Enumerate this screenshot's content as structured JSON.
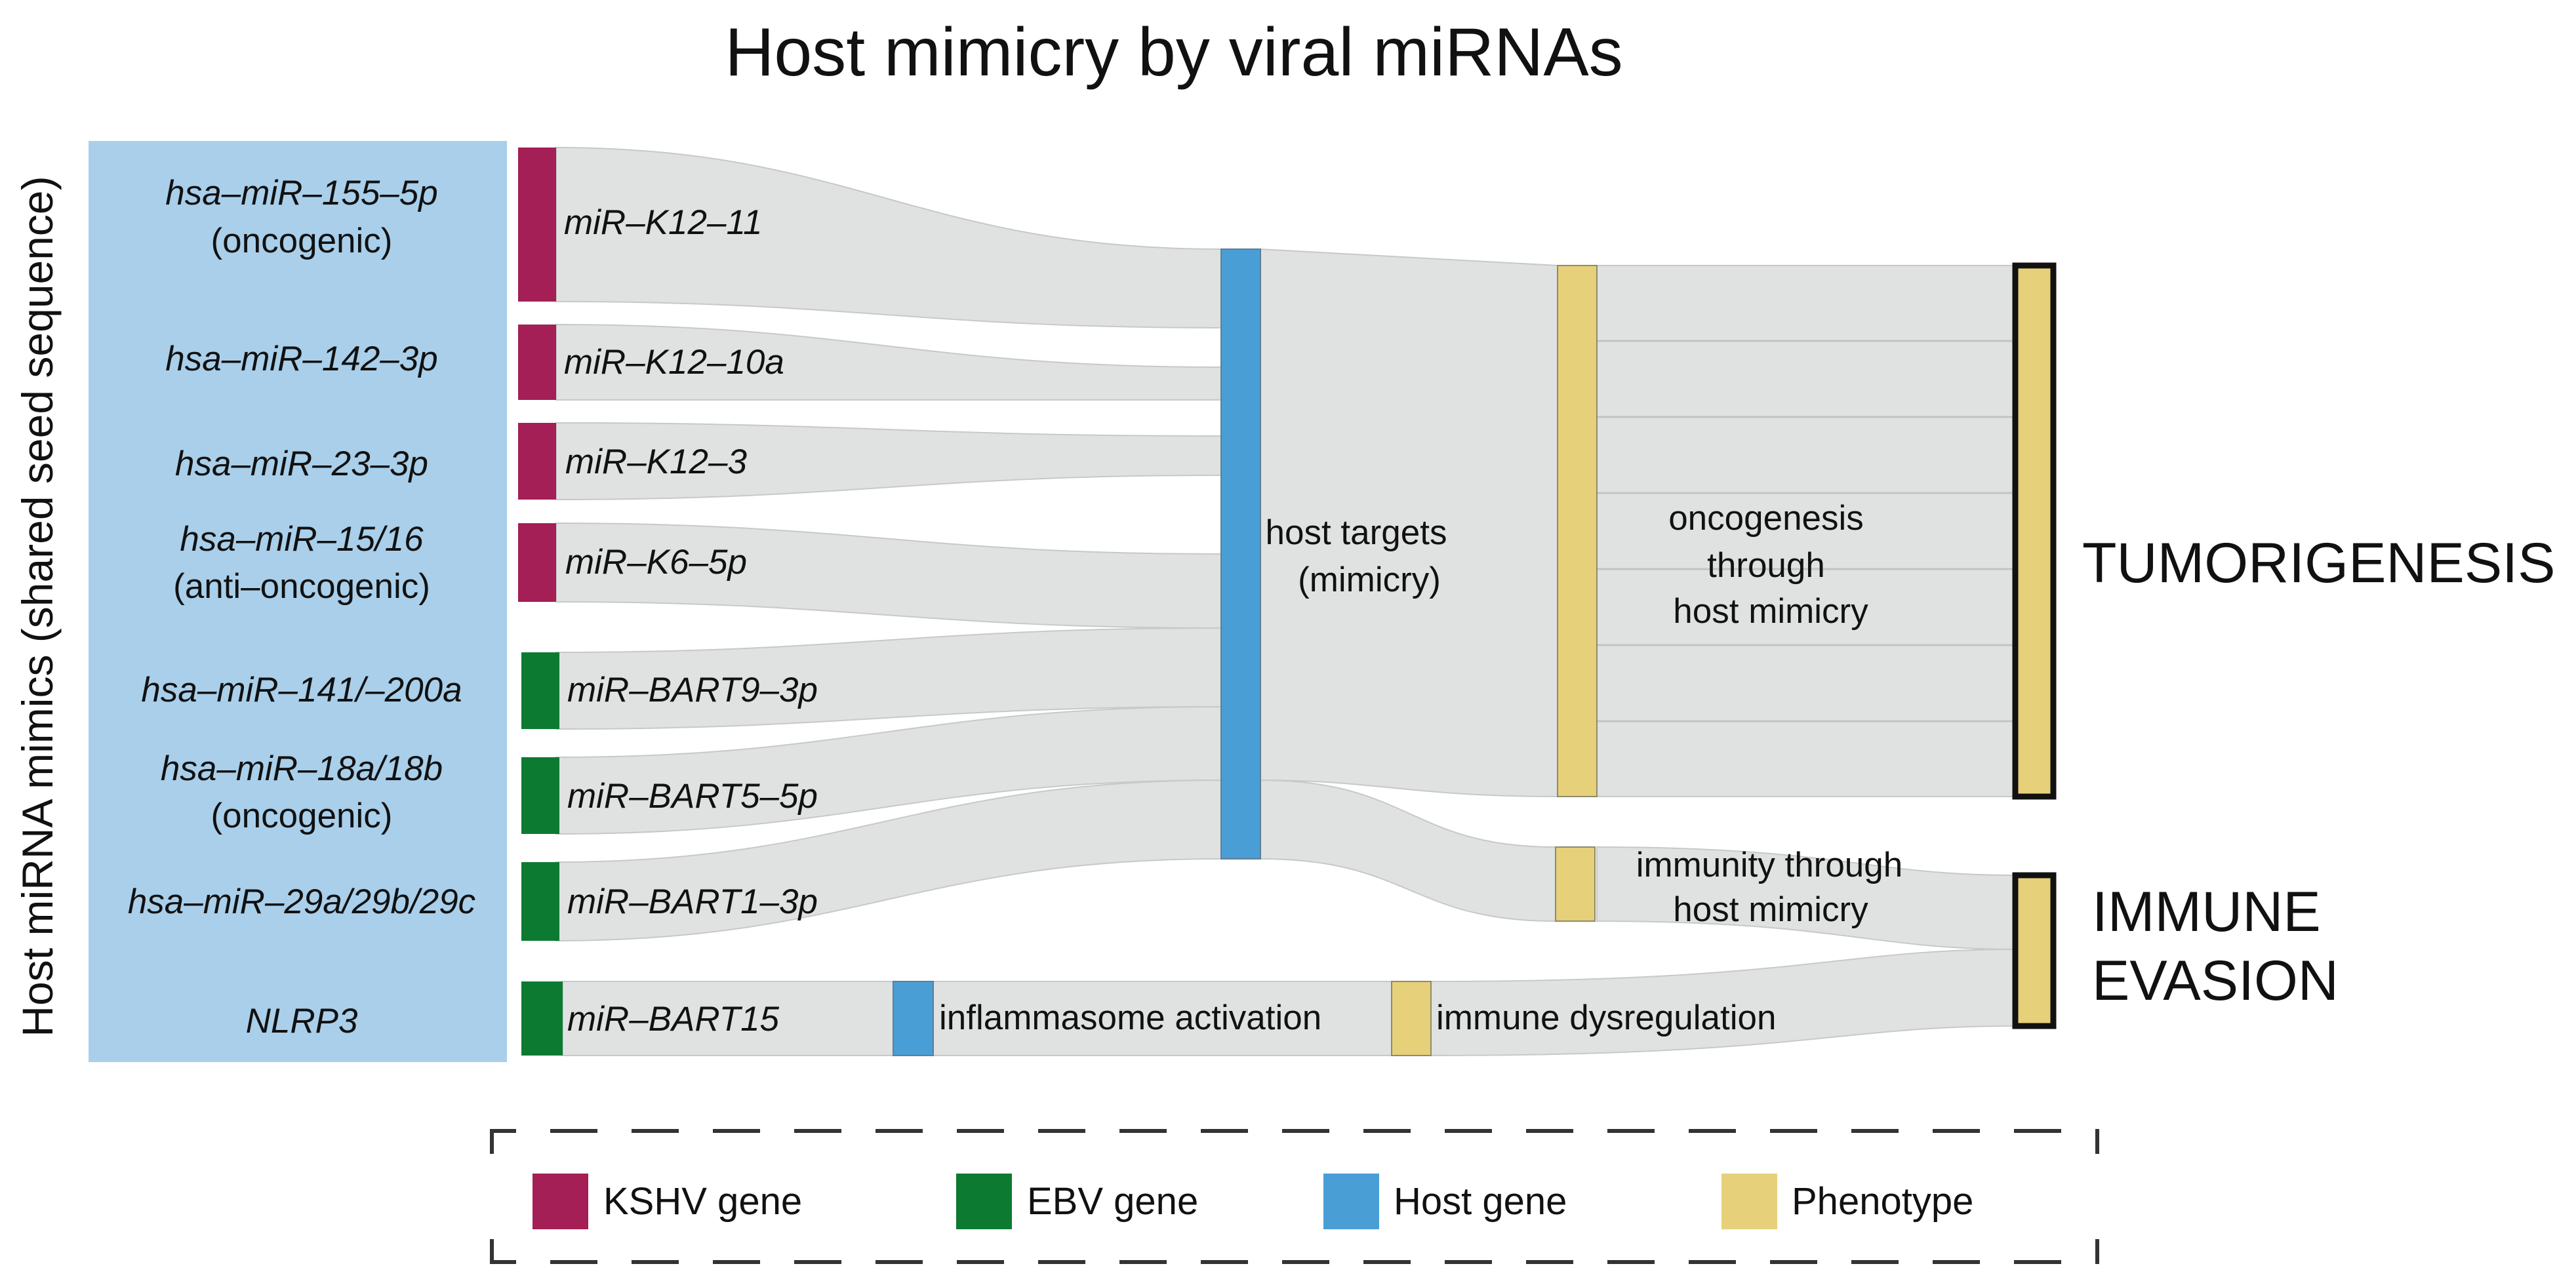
{
  "title": "Host mimicry by viral miRNAs",
  "y_axis_label": "Host miRNA mimics (shared seed sequence)",
  "colors": {
    "kshv": "#a31f55",
    "ebv": "#0d7a31",
    "host": "#4a9ed6",
    "phenotype": "#e6d07a",
    "flow": "#dadcdc",
    "host_panel": "#a9cfea",
    "outline": "#111111"
  },
  "host_mimics": [
    {
      "line1": "hsa–miR–155–5p",
      "line2": "(oncogenic)"
    },
    {
      "line1": "hsa–miR–142–3p",
      "line2": ""
    },
    {
      "line1": "hsa–miR–23–3p",
      "line2": ""
    },
    {
      "line1": "hsa–miR–15/16",
      "line2": "(anti–oncogenic)"
    },
    {
      "line1": "hsa–miR–141/–200a",
      "line2": ""
    },
    {
      "line1": "hsa–miR–18a/18b",
      "line2": "(oncogenic)"
    },
    {
      "line1": "hsa–miR–29a/29b/29c",
      "line2": ""
    },
    {
      "line1": "NLRP3",
      "line2": ""
    }
  ],
  "viral_genes": [
    {
      "label": "miR–K12–11",
      "type": "kshv"
    },
    {
      "label": "miR–K12–10a",
      "type": "kshv"
    },
    {
      "label": "miR–K12–3",
      "type": "kshv"
    },
    {
      "label": "miR–K6–5p",
      "type": "kshv"
    },
    {
      "label": "miR–BART9–3p",
      "type": "ebv"
    },
    {
      "label": "miR–BART5–5p",
      "type": "ebv"
    },
    {
      "label": "miR–BART1–3p",
      "type": "ebv"
    },
    {
      "label": "miR–BART15",
      "type": "ebv"
    }
  ],
  "nodes": {
    "host_targets": {
      "line1": "host targets",
      "line2": "(mimicry)"
    },
    "inflammasome": {
      "label": "inflammasome activation"
    },
    "oncogenesis": {
      "line1": "oncogenesis",
      "line2": "through",
      "line3": "host mimicry"
    },
    "immunity": {
      "line1": "immunity through",
      "line2": "host mimicry"
    },
    "immune_dysregulation": {
      "label": "immune dysregulation"
    },
    "tumorigenesis": {
      "label": "TUMORIGENESIS"
    },
    "immune_evasion": {
      "line1": "IMMUNE",
      "line2": "EVASION"
    }
  },
  "legend": [
    {
      "label": "KSHV gene",
      "type": "kshv"
    },
    {
      "label": "EBV gene",
      "type": "ebv"
    },
    {
      "label": "Host gene",
      "type": "host"
    },
    {
      "label": "Phenotype",
      "type": "phenotype"
    }
  ]
}
